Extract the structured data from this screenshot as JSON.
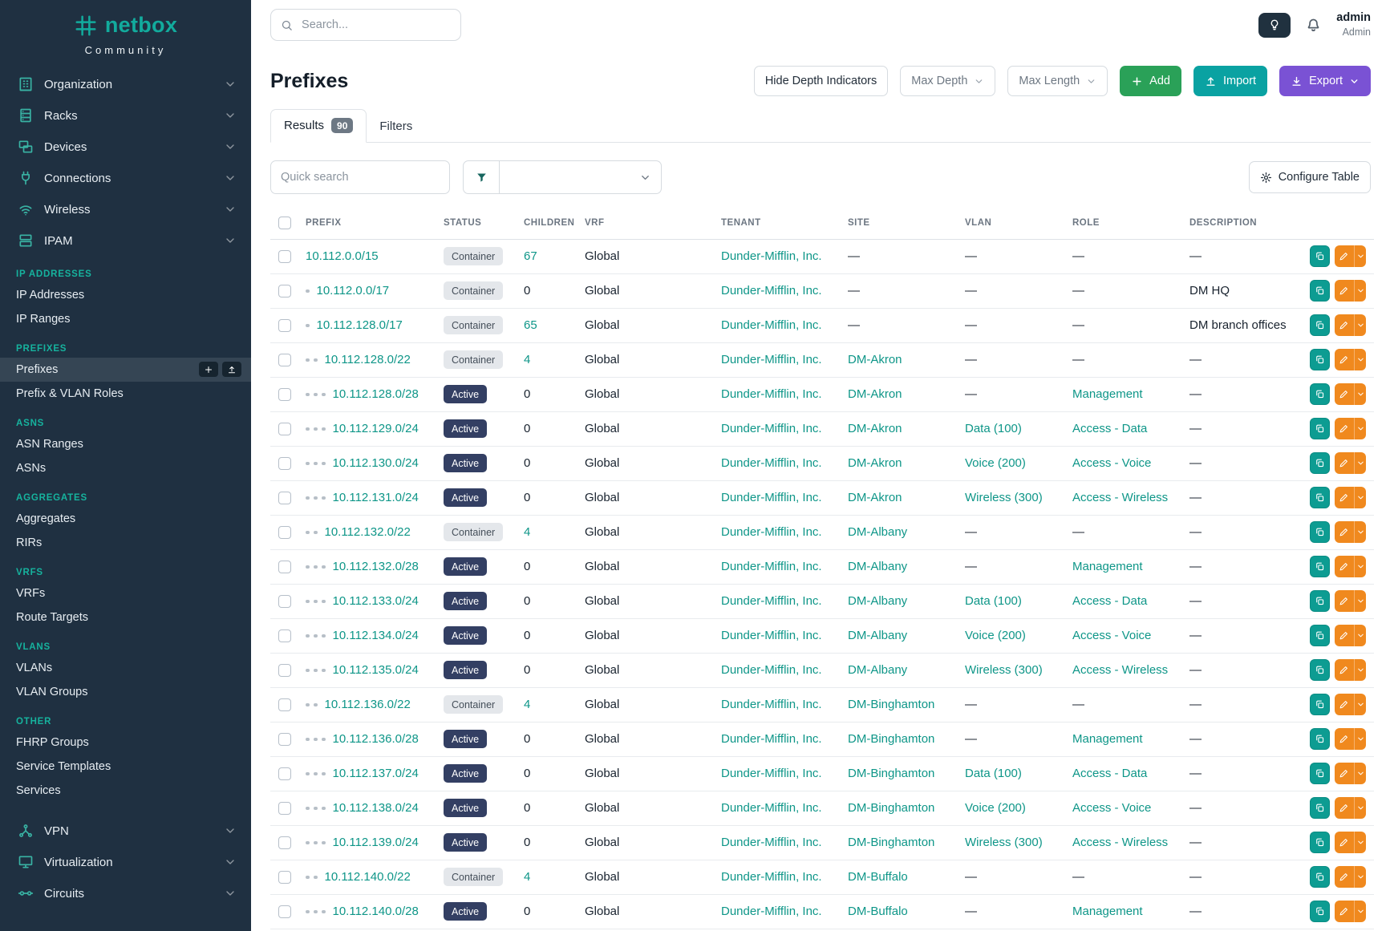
{
  "brand": {
    "name": "netbox",
    "subtitle": "Community"
  },
  "topbar": {
    "search_placeholder": "Search...",
    "user_name": "admin",
    "user_role": "Admin"
  },
  "sidebar": {
    "top_nav": [
      {
        "label": "Organization",
        "icon": "organization"
      },
      {
        "label": "Racks",
        "icon": "racks"
      },
      {
        "label": "Devices",
        "icon": "devices"
      },
      {
        "label": "Connections",
        "icon": "connections"
      },
      {
        "label": "Wireless",
        "icon": "wireless"
      },
      {
        "label": "IPAM",
        "icon": "ipam"
      }
    ],
    "sections": [
      {
        "header": "IP ADDRESSES",
        "items": [
          {
            "label": "IP Addresses"
          },
          {
            "label": "IP Ranges"
          }
        ]
      },
      {
        "header": "PREFIXES",
        "items": [
          {
            "label": "Prefixes",
            "active": true
          },
          {
            "label": "Prefix & VLAN Roles"
          }
        ]
      },
      {
        "header": "ASNS",
        "items": [
          {
            "label": "ASN Ranges"
          },
          {
            "label": "ASNs"
          }
        ]
      },
      {
        "header": "AGGREGATES",
        "items": [
          {
            "label": "Aggregates"
          },
          {
            "label": "RIRs"
          }
        ]
      },
      {
        "header": "VRFS",
        "items": [
          {
            "label": "VRFs"
          },
          {
            "label": "Route Targets"
          }
        ]
      },
      {
        "header": "VLANS",
        "items": [
          {
            "label": "VLANs"
          },
          {
            "label": "VLAN Groups"
          }
        ]
      },
      {
        "header": "OTHER",
        "items": [
          {
            "label": "FHRP Groups"
          },
          {
            "label": "Service Templates"
          },
          {
            "label": "Services"
          }
        ]
      }
    ],
    "bottom_nav": [
      {
        "label": "VPN",
        "icon": "vpn"
      },
      {
        "label": "Virtualization",
        "icon": "virtualization"
      },
      {
        "label": "Circuits",
        "icon": "circuits"
      }
    ]
  },
  "page": {
    "title": "Prefixes",
    "toolbar": {
      "hide_depth_label": "Hide Depth Indicators",
      "max_depth_label": "Max Depth",
      "max_length_label": "Max Length",
      "add_label": "Add",
      "import_label": "Import",
      "export_label": "Export"
    },
    "tabs": [
      {
        "label": "Results",
        "badge": "90"
      },
      {
        "label": "Filters"
      }
    ],
    "quick_search_placeholder": "Quick search",
    "configure_table_label": "Configure Table"
  },
  "table": {
    "headers": [
      "PREFIX",
      "STATUS",
      "CHILDREN",
      "VRF",
      "TENANT",
      "SITE",
      "VLAN",
      "ROLE",
      "DESCRIPTION"
    ],
    "rows": [
      {
        "prefix": "10.112.0.0/15",
        "depth": 0,
        "status": "Container",
        "children": "67",
        "vrf": "Global",
        "tenant": "Dunder-Mifflin, Inc.",
        "site": "—",
        "vlan": "—",
        "role": "—",
        "description": "—"
      },
      {
        "prefix": "10.112.0.0/17",
        "depth": 1,
        "status": "Container",
        "children": "0",
        "vrf": "Global",
        "tenant": "Dunder-Mifflin, Inc.",
        "site": "—",
        "vlan": "—",
        "role": "—",
        "description": "DM HQ"
      },
      {
        "prefix": "10.112.128.0/17",
        "depth": 1,
        "status": "Container",
        "children": "65",
        "vrf": "Global",
        "tenant": "Dunder-Mifflin, Inc.",
        "site": "—",
        "vlan": "—",
        "role": "—",
        "description": "DM branch offices"
      },
      {
        "prefix": "10.112.128.0/22",
        "depth": 2,
        "status": "Container",
        "children": "4",
        "vrf": "Global",
        "tenant": "Dunder-Mifflin, Inc.",
        "site": "DM-Akron",
        "vlan": "—",
        "role": "—",
        "description": "—"
      },
      {
        "prefix": "10.112.128.0/28",
        "depth": 3,
        "status": "Active",
        "children": "0",
        "vrf": "Global",
        "tenant": "Dunder-Mifflin, Inc.",
        "site": "DM-Akron",
        "vlan": "—",
        "role": "Management",
        "description": "—"
      },
      {
        "prefix": "10.112.129.0/24",
        "depth": 3,
        "status": "Active",
        "children": "0",
        "vrf": "Global",
        "tenant": "Dunder-Mifflin, Inc.",
        "site": "DM-Akron",
        "vlan": "Data (100)",
        "role": "Access - Data",
        "description": "—"
      },
      {
        "prefix": "10.112.130.0/24",
        "depth": 3,
        "status": "Active",
        "children": "0",
        "vrf": "Global",
        "tenant": "Dunder-Mifflin, Inc.",
        "site": "DM-Akron",
        "vlan": "Voice (200)",
        "role": "Access - Voice",
        "description": "—"
      },
      {
        "prefix": "10.112.131.0/24",
        "depth": 3,
        "status": "Active",
        "children": "0",
        "vrf": "Global",
        "tenant": "Dunder-Mifflin, Inc.",
        "site": "DM-Akron",
        "vlan": "Wireless (300)",
        "role": "Access - Wireless",
        "description": "—"
      },
      {
        "prefix": "10.112.132.0/22",
        "depth": 2,
        "status": "Container",
        "children": "4",
        "vrf": "Global",
        "tenant": "Dunder-Mifflin, Inc.",
        "site": "DM-Albany",
        "vlan": "—",
        "role": "—",
        "description": "—"
      },
      {
        "prefix": "10.112.132.0/28",
        "depth": 3,
        "status": "Active",
        "children": "0",
        "vrf": "Global",
        "tenant": "Dunder-Mifflin, Inc.",
        "site": "DM-Albany",
        "vlan": "—",
        "role": "Management",
        "description": "—"
      },
      {
        "prefix": "10.112.133.0/24",
        "depth": 3,
        "status": "Active",
        "children": "0",
        "vrf": "Global",
        "tenant": "Dunder-Mifflin, Inc.",
        "site": "DM-Albany",
        "vlan": "Data (100)",
        "role": "Access - Data",
        "description": "—"
      },
      {
        "prefix": "10.112.134.0/24",
        "depth": 3,
        "status": "Active",
        "children": "0",
        "vrf": "Global",
        "tenant": "Dunder-Mifflin, Inc.",
        "site": "DM-Albany",
        "vlan": "Voice (200)",
        "role": "Access - Voice",
        "description": "—"
      },
      {
        "prefix": "10.112.135.0/24",
        "depth": 3,
        "status": "Active",
        "children": "0",
        "vrf": "Global",
        "tenant": "Dunder-Mifflin, Inc.",
        "site": "DM-Albany",
        "vlan": "Wireless (300)",
        "role": "Access - Wireless",
        "description": "—"
      },
      {
        "prefix": "10.112.136.0/22",
        "depth": 2,
        "status": "Container",
        "children": "4",
        "vrf": "Global",
        "tenant": "Dunder-Mifflin, Inc.",
        "site": "DM-Binghamton",
        "vlan": "—",
        "role": "—",
        "description": "—"
      },
      {
        "prefix": "10.112.136.0/28",
        "depth": 3,
        "status": "Active",
        "children": "0",
        "vrf": "Global",
        "tenant": "Dunder-Mifflin, Inc.",
        "site": "DM-Binghamton",
        "vlan": "—",
        "role": "Management",
        "description": "—"
      },
      {
        "prefix": "10.112.137.0/24",
        "depth": 3,
        "status": "Active",
        "children": "0",
        "vrf": "Global",
        "tenant": "Dunder-Mifflin, Inc.",
        "site": "DM-Binghamton",
        "vlan": "Data (100)",
        "role": "Access - Data",
        "description": "—"
      },
      {
        "prefix": "10.112.138.0/24",
        "depth": 3,
        "status": "Active",
        "children": "0",
        "vrf": "Global",
        "tenant": "Dunder-Mifflin, Inc.",
        "site": "DM-Binghamton",
        "vlan": "Voice (200)",
        "role": "Access - Voice",
        "description": "—"
      },
      {
        "prefix": "10.112.139.0/24",
        "depth": 3,
        "status": "Active",
        "children": "0",
        "vrf": "Global",
        "tenant": "Dunder-Mifflin, Inc.",
        "site": "DM-Binghamton",
        "vlan": "Wireless (300)",
        "role": "Access - Wireless",
        "description": "—"
      },
      {
        "prefix": "10.112.140.0/22",
        "depth": 2,
        "status": "Container",
        "children": "4",
        "vrf": "Global",
        "tenant": "Dunder-Mifflin, Inc.",
        "site": "DM-Buffalo",
        "vlan": "—",
        "role": "—",
        "description": "—"
      },
      {
        "prefix": "10.112.140.0/28",
        "depth": 3,
        "status": "Active",
        "children": "0",
        "vrf": "Global",
        "tenant": "Dunder-Mifflin, Inc.",
        "site": "DM-Buffalo",
        "vlan": "—",
        "role": "Management",
        "description": "—"
      }
    ]
  },
  "colors": {
    "accent_teal": "#0e9688",
    "sidebar_bg": "#1f3041",
    "sidebar_section": "#16b39e",
    "add_green": "#2aa158",
    "import_teal": "#0aa2a2",
    "export_purple": "#7a52d4",
    "edit_orange": "#f0891e",
    "clone_teal": "#0d9c92",
    "active_badge": "#333f63",
    "container_badge": "#e4e7eb"
  }
}
